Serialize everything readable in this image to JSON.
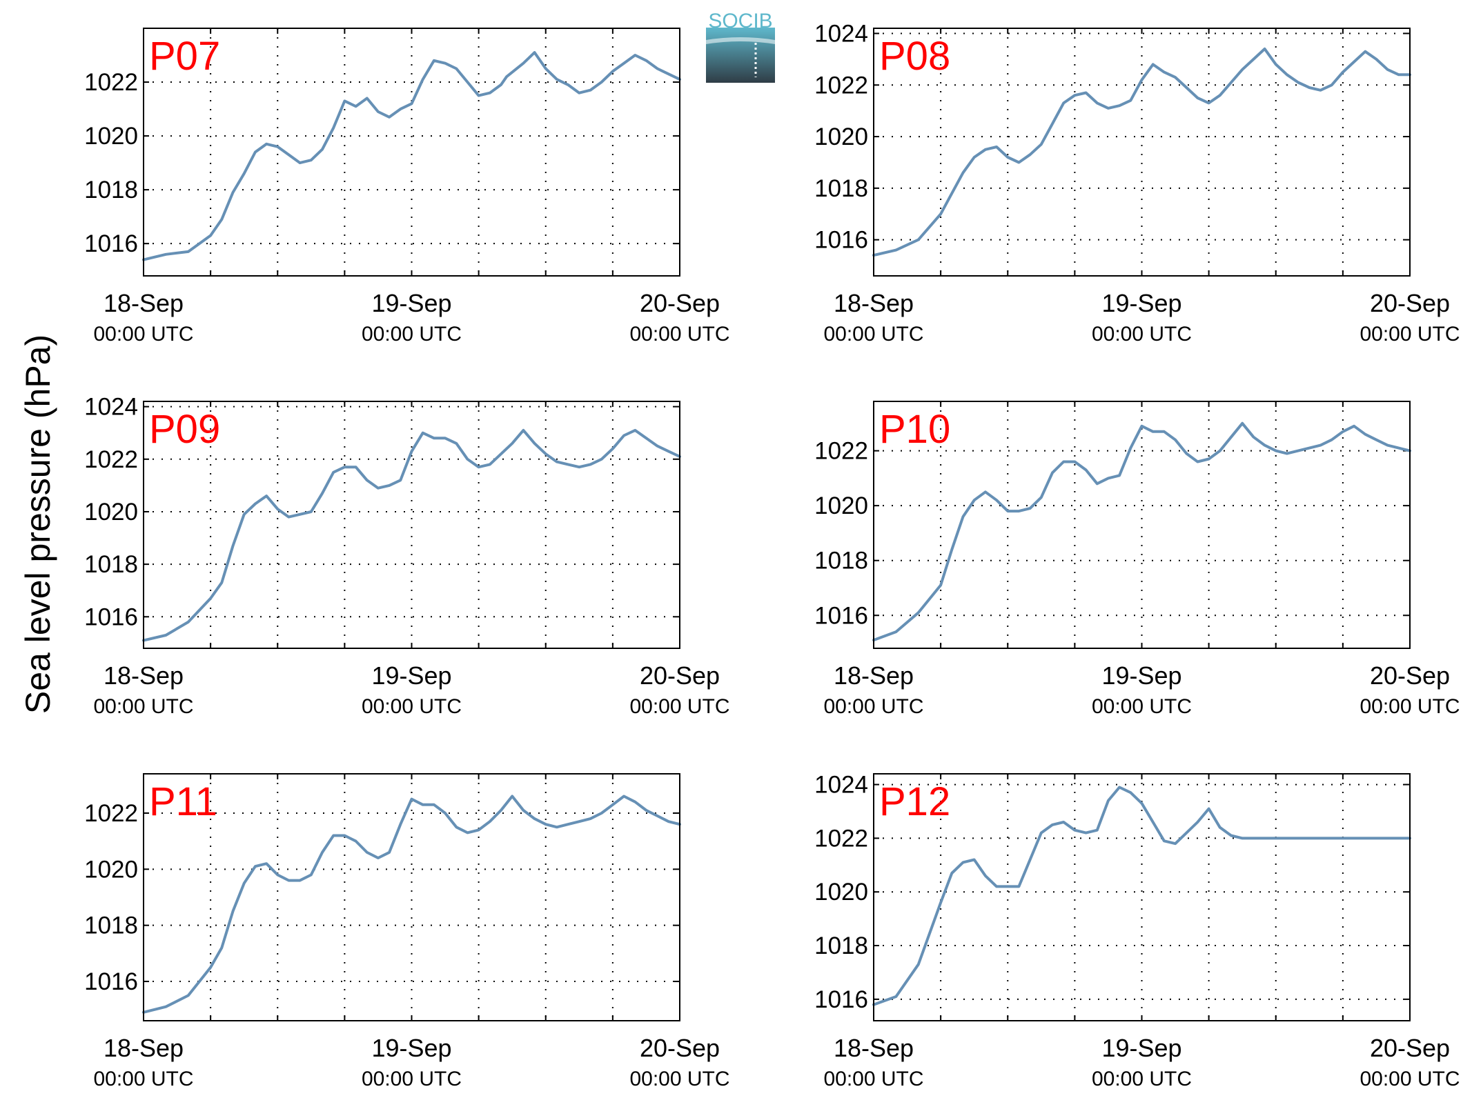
{
  "figure": {
    "ylabel": "Sea level pressure (hPa)",
    "logo_text": "SOCIB",
    "colors": {
      "line": "#6690b5",
      "station_label": "#ff0000",
      "axis": "#000000",
      "grid": "#000000",
      "logo_top": "#5fb8cc",
      "logo_bottom": "#2f3d46"
    }
  },
  "chart_data": [
    {
      "type": "line",
      "title": "P07",
      "x_tick_labels": [
        {
          "date": "18-Sep",
          "time": "00:00 UTC"
        },
        {
          "date": "19-Sep",
          "time": "00:00 UTC"
        },
        {
          "date": "20-Sep",
          "time": "00:00 UTC"
        }
      ],
      "xlim_hours": [
        0,
        48
      ],
      "ylim": [
        1014.8,
        1024.0
      ],
      "yticks": [
        1016,
        1018,
        1020,
        1022
      ],
      "grid": true,
      "x": [
        0,
        2,
        4,
        6,
        7,
        8,
        9,
        10,
        11,
        12,
        13,
        14,
        15,
        16,
        17,
        18,
        19,
        20,
        21,
        22,
        23,
        24,
        25,
        26,
        27,
        28,
        29,
        30,
        31,
        32,
        32.5,
        34,
        35,
        36,
        37,
        38,
        39,
        40,
        41,
        42,
        43,
        44,
        45,
        46,
        46.5,
        47,
        48
      ],
      "y": [
        1015.4,
        1015.6,
        1015.7,
        1016.3,
        1016.9,
        1017.9,
        1018.6,
        1019.4,
        1019.7,
        1019.6,
        1019.3,
        1019.0,
        1019.1,
        1019.5,
        1020.3,
        1021.3,
        1021.1,
        1021.4,
        1020.9,
        1020.7,
        1021.0,
        1021.2,
        1022.1,
        1022.8,
        1022.7,
        1022.5,
        1022.0,
        1021.5,
        1021.6,
        1021.9,
        1022.2,
        1022.7,
        1023.1,
        1022.5,
        1022.1,
        1021.9,
        1021.6,
        1021.7,
        1022.0,
        1022.4,
        1022.7,
        1023.0,
        1022.8,
        1022.5,
        1022.4,
        1022.3,
        1022.1
      ]
    },
    {
      "type": "line",
      "title": "P08",
      "x_tick_labels": [
        {
          "date": "18-Sep",
          "time": "00:00 UTC"
        },
        {
          "date": "19-Sep",
          "time": "00:00 UTC"
        },
        {
          "date": "20-Sep",
          "time": "00:00 UTC"
        }
      ],
      "xlim_hours": [
        0,
        48
      ],
      "ylim": [
        1014.6,
        1024.2
      ],
      "yticks": [
        1016,
        1018,
        1020,
        1022,
        1024
      ],
      "grid": true,
      "x": [
        0,
        2,
        4,
        6,
        7,
        8,
        9,
        10,
        11,
        12,
        13,
        14,
        15,
        16,
        17,
        18,
        19,
        20,
        21,
        22,
        23,
        24,
        25,
        26,
        27,
        28,
        29,
        30,
        31,
        32,
        33,
        34,
        35,
        36,
        37,
        38,
        39,
        40,
        41,
        42,
        43,
        44,
        45,
        46,
        47,
        48
      ],
      "y": [
        1015.4,
        1015.6,
        1016.0,
        1017.0,
        1017.8,
        1018.6,
        1019.2,
        1019.5,
        1019.6,
        1019.2,
        1019.0,
        1019.3,
        1019.7,
        1020.5,
        1021.3,
        1021.6,
        1021.7,
        1021.3,
        1021.1,
        1021.2,
        1021.4,
        1022.2,
        1022.8,
        1022.5,
        1022.3,
        1021.9,
        1021.5,
        1021.3,
        1021.6,
        1022.1,
        1022.6,
        1023.0,
        1023.4,
        1022.8,
        1022.4,
        1022.1,
        1021.9,
        1021.8,
        1022.0,
        1022.5,
        1022.9,
        1023.3,
        1023.0,
        1022.6,
        1022.4,
        1022.4
      ]
    },
    {
      "type": "line",
      "title": "P09",
      "x_tick_labels": [
        {
          "date": "18-Sep",
          "time": "00:00 UTC"
        },
        {
          "date": "19-Sep",
          "time": "00:00 UTC"
        },
        {
          "date": "20-Sep",
          "time": "00:00 UTC"
        }
      ],
      "xlim_hours": [
        0,
        48
      ],
      "ylim": [
        1014.8,
        1024.2
      ],
      "yticks": [
        1016,
        1018,
        1020,
        1022,
        1024
      ],
      "grid": true,
      "x": [
        0,
        2,
        4,
        6,
        7,
        8,
        9,
        10,
        11,
        12,
        13,
        14,
        15,
        16,
        17,
        18,
        19,
        20,
        21,
        22,
        23,
        24,
        25,
        26,
        27,
        28,
        29,
        30,
        31,
        32,
        33,
        34,
        35,
        36,
        37,
        38,
        39,
        40,
        41,
        42,
        43,
        44,
        45,
        46,
        47,
        48
      ],
      "y": [
        1015.1,
        1015.3,
        1015.8,
        1016.7,
        1017.3,
        1018.7,
        1019.9,
        1020.3,
        1020.6,
        1020.1,
        1019.8,
        1019.9,
        1020.0,
        1020.7,
        1021.5,
        1021.7,
        1021.7,
        1021.2,
        1020.9,
        1021.0,
        1021.2,
        1022.3,
        1023.0,
        1022.8,
        1022.8,
        1022.6,
        1022.0,
        1021.7,
        1021.8,
        1022.2,
        1022.6,
        1023.1,
        1022.6,
        1022.2,
        1021.9,
        1021.8,
        1021.7,
        1021.8,
        1022.0,
        1022.4,
        1022.9,
        1023.1,
        1022.8,
        1022.5,
        1022.3,
        1022.1
      ]
    },
    {
      "type": "line",
      "title": "P10",
      "x_tick_labels": [
        {
          "date": "18-Sep",
          "time": "00:00 UTC"
        },
        {
          "date": "19-Sep",
          "time": "00:00 UTC"
        },
        {
          "date": "20-Sep",
          "time": "00:00 UTC"
        }
      ],
      "xlim_hours": [
        0,
        48
      ],
      "ylim": [
        1014.8,
        1023.8
      ],
      "yticks": [
        1016,
        1018,
        1020,
        1022
      ],
      "grid": true,
      "x": [
        0,
        2,
        4,
        6,
        7,
        8,
        9,
        10,
        11,
        12,
        13,
        14,
        15,
        16,
        17,
        18,
        19,
        20,
        21,
        22,
        23,
        24,
        25,
        26,
        27,
        28,
        29,
        30,
        31,
        32,
        33,
        34,
        35,
        36,
        37,
        38,
        39,
        40,
        41,
        42,
        43,
        44,
        45,
        46,
        47,
        48
      ],
      "y": [
        1015.1,
        1015.4,
        1016.1,
        1017.1,
        1018.4,
        1019.6,
        1020.2,
        1020.5,
        1020.2,
        1019.8,
        1019.8,
        1019.9,
        1020.3,
        1021.2,
        1021.6,
        1021.6,
        1021.3,
        1020.8,
        1021.0,
        1021.1,
        1022.1,
        1022.9,
        1022.7,
        1022.7,
        1022.4,
        1021.9,
        1021.6,
        1021.7,
        1022.0,
        1022.5,
        1023.0,
        1022.5,
        1022.2,
        1022.0,
        1021.9,
        1022.0,
        1022.1,
        1022.2,
        1022.4,
        1022.7,
        1022.9,
        1022.6,
        1022.4,
        1022.2,
        1022.1,
        1022.0
      ]
    },
    {
      "type": "line",
      "title": "P11",
      "x_tick_labels": [
        {
          "date": "18-Sep",
          "time": "00:00 UTC"
        },
        {
          "date": "19-Sep",
          "time": "00:00 UTC"
        },
        {
          "date": "20-Sep",
          "time": "00:00 UTC"
        }
      ],
      "xlim_hours": [
        0,
        48
      ],
      "ylim": [
        1014.6,
        1023.4
      ],
      "yticks": [
        1016,
        1018,
        1020,
        1022
      ],
      "grid": true,
      "x": [
        0,
        2,
        4,
        6,
        7,
        8,
        9,
        10,
        11,
        12,
        13,
        14,
        15,
        16,
        17,
        18,
        19,
        20,
        21,
        22,
        23,
        24,
        25,
        26,
        27,
        28,
        29,
        30,
        31,
        32,
        33,
        34,
        35,
        36,
        37,
        38,
        39,
        40,
        41,
        42,
        43,
        44,
        45,
        46,
        47,
        48
      ],
      "y": [
        1014.9,
        1015.1,
        1015.5,
        1016.5,
        1017.2,
        1018.5,
        1019.5,
        1020.1,
        1020.2,
        1019.8,
        1019.6,
        1019.6,
        1019.8,
        1020.6,
        1021.2,
        1021.2,
        1021.0,
        1020.6,
        1020.4,
        1020.6,
        1021.6,
        1022.5,
        1022.3,
        1022.3,
        1022.0,
        1021.5,
        1021.3,
        1021.4,
        1021.7,
        1022.1,
        1022.6,
        1022.1,
        1021.8,
        1021.6,
        1021.5,
        1021.6,
        1021.7,
        1021.8,
        1022.0,
        1022.3,
        1022.6,
        1022.4,
        1022.1,
        1021.9,
        1021.7,
        1021.6
      ]
    },
    {
      "type": "line",
      "title": "P12",
      "x_tick_labels": [
        {
          "date": "18-Sep",
          "time": "00:00 UTC"
        },
        {
          "date": "19-Sep",
          "time": "00:00 UTC"
        },
        {
          "date": "20-Sep",
          "time": "00:00 UTC"
        }
      ],
      "xlim_hours": [
        0,
        48
      ],
      "ylim": [
        1015.2,
        1024.4
      ],
      "yticks": [
        1016,
        1018,
        1020,
        1022,
        1024
      ],
      "grid": true,
      "x": [
        0,
        2,
        4,
        6,
        7,
        8,
        9,
        10,
        11,
        12,
        13,
        14,
        15,
        16,
        17,
        18,
        19,
        20,
        21,
        22,
        23,
        24,
        25,
        26,
        27,
        28,
        29,
        30,
        31,
        32,
        33,
        34,
        35,
        36,
        37,
        38,
        39,
        40,
        41,
        42,
        43,
        44,
        45,
        46,
        47,
        48
      ],
      "y": [
        1015.8,
        1016.1,
        1017.3,
        1019.6,
        1020.7,
        1021.1,
        1021.2,
        1020.6,
        1020.2,
        1020.2,
        1020.2,
        1021.2,
        1022.2,
        1022.5,
        1022.6,
        1022.3,
        1022.2,
        1022.3,
        1023.4,
        1023.9,
        1023.7,
        1023.3,
        1022.6,
        1021.9,
        1021.8,
        1022.2,
        1022.6,
        1023.1,
        1022.4,
        1022.1,
        1022.0,
        1022.0,
        1022.0,
        1022.0,
        1022.0,
        1022.0,
        1022.0,
        1022.0,
        1022.0,
        1022.0,
        1022.0,
        1022.0,
        1022.0,
        1022.0,
        1022.0,
        1022.0
      ]
    }
  ]
}
